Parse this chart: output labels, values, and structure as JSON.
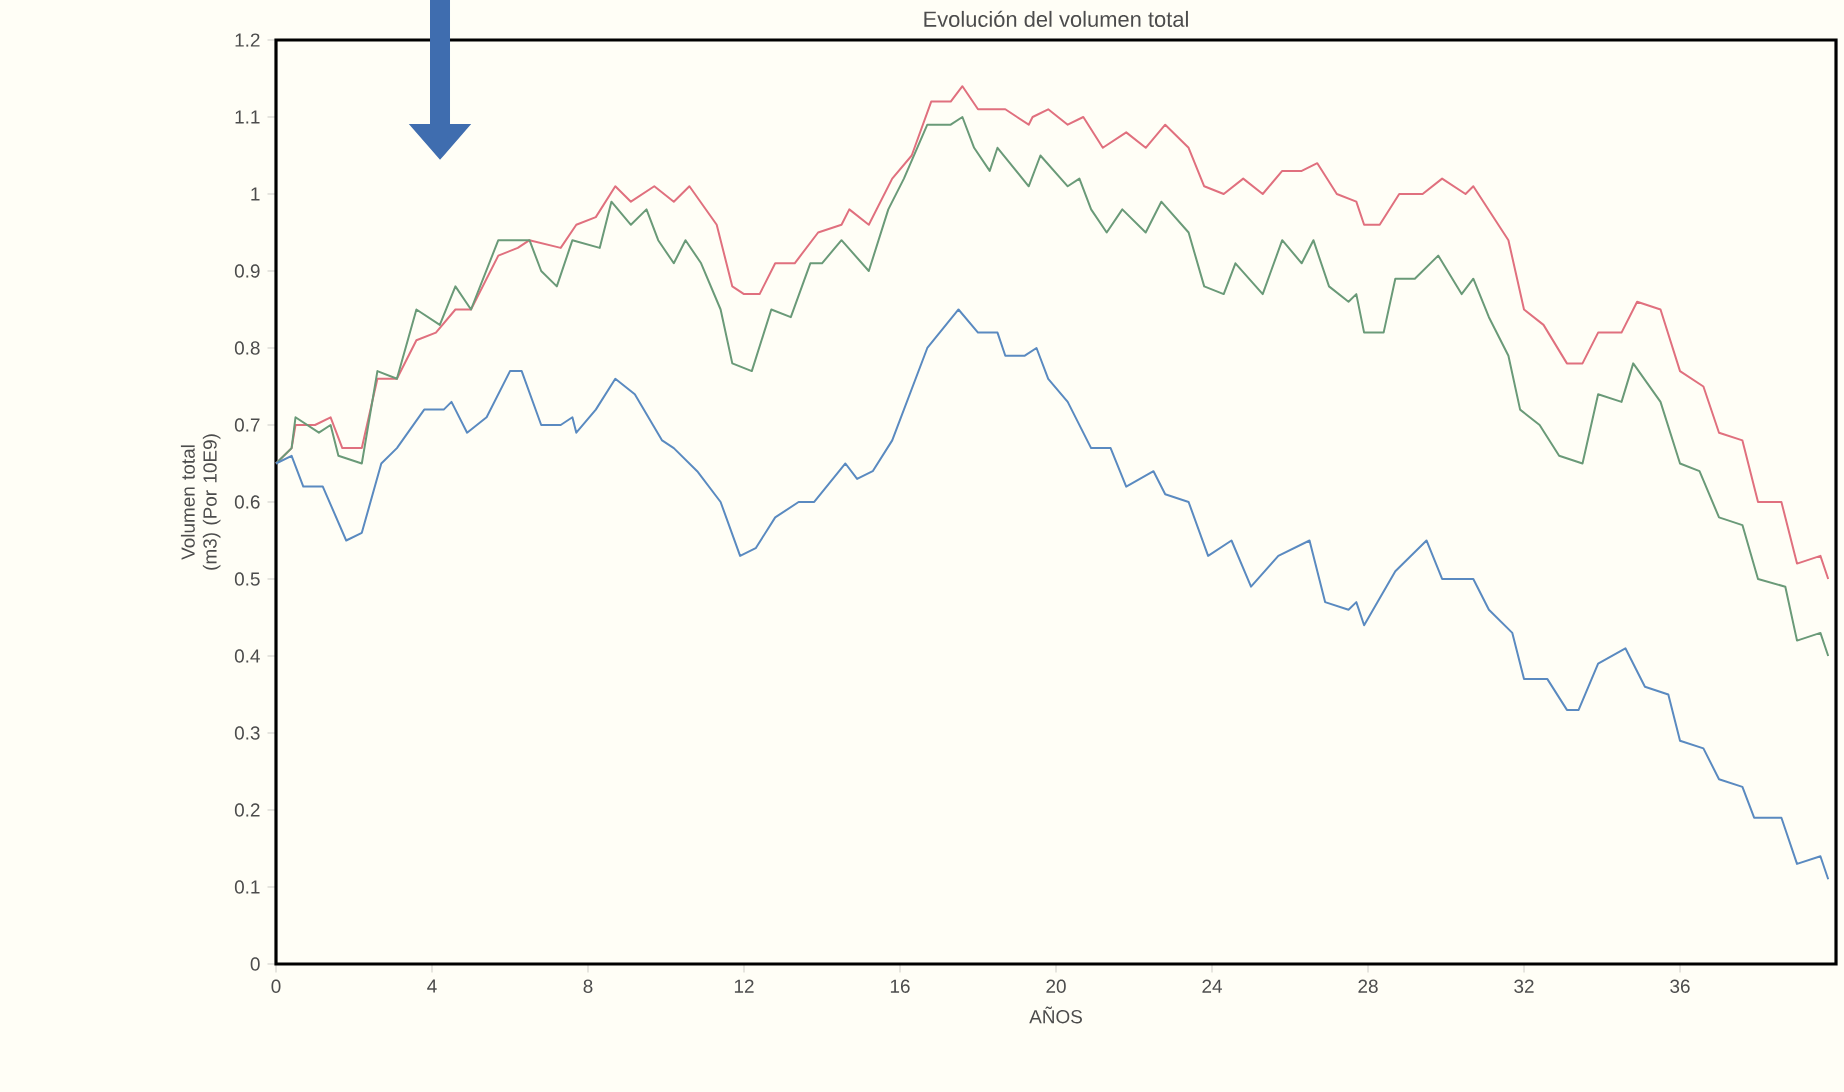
{
  "chart_data": {
    "type": "line",
    "title": "Evolución del volumen total",
    "xlabel": "AÑOS",
    "ylabel": "Volumen total (m3) (Por 10E9)",
    "xlim": [
      0,
      40
    ],
    "xticks": [
      0,
      4,
      8,
      12,
      16,
      20,
      24,
      28,
      32,
      36
    ],
    "ylim": [
      0,
      1.2
    ],
    "yticks": [
      0,
      0.1,
      0.2,
      0.3,
      0.4,
      0.5,
      0.6,
      0.7,
      0.8,
      0.9,
      1,
      1.1,
      1.2
    ],
    "line_style": "solid",
    "marker": "none",
    "series": [
      {
        "color": "#e0707e",
        "x": [
          0,
          0.4,
          0.5,
          1.0,
          1.4,
          1.7,
          2.2,
          2.6,
          3.1,
          3.6,
          4.1,
          4.6,
          5.0,
          5.7,
          6.2,
          6.5,
          7.3,
          7.7,
          8.2,
          8.7,
          9.1,
          9.7,
          10.2,
          10.6,
          11.3,
          11.7,
          12.0,
          12.4,
          12.8,
          13.3,
          13.9,
          14.5,
          14.7,
          15.2,
          15.8,
          16.3,
          16.8,
          17.3,
          17.6,
          18.0,
          18.7,
          19.3,
          19.4,
          19.8,
          20.3,
          20.7,
          21.2,
          21.8,
          22.3,
          22.8,
          23.4,
          23.8,
          24.3,
          24.8,
          25.3,
          25.8,
          26.3,
          26.7,
          27.2,
          27.7,
          27.9,
          28.3,
          28.8,
          29.4,
          29.9,
          30.5,
          30.7,
          31.6,
          32.0,
          32.5,
          33.1,
          33.5,
          33.9,
          34.5,
          34.9,
          35.5,
          36.0,
          36.6,
          37.0,
          37.6,
          38.0,
          38.6,
          39.0,
          39.6,
          39.8
        ],
        "values": [
          0.65,
          0.67,
          0.7,
          0.7,
          0.71,
          0.67,
          0.67,
          0.76,
          0.76,
          0.81,
          0.82,
          0.85,
          0.85,
          0.92,
          0.93,
          0.94,
          0.93,
          0.96,
          0.97,
          1.01,
          0.99,
          1.01,
          0.99,
          1.01,
          0.96,
          0.88,
          0.87,
          0.87,
          0.91,
          0.91,
          0.95,
          0.96,
          0.98,
          0.96,
          1.02,
          1.05,
          1.12,
          1.12,
          1.14,
          1.11,
          1.11,
          1.09,
          1.1,
          1.11,
          1.09,
          1.1,
          1.06,
          1.08,
          1.06,
          1.09,
          1.06,
          1.01,
          1.0,
          1.02,
          1.0,
          1.03,
          1.03,
          1.04,
          1.0,
          0.99,
          0.96,
          0.96,
          1.0,
          1.0,
          1.02,
          1.0,
          1.01,
          0.94,
          0.85,
          0.83,
          0.78,
          0.78,
          0.82,
          0.82,
          0.86,
          0.85,
          0.77,
          0.75,
          0.69,
          0.68,
          0.6,
          0.6,
          0.52,
          0.53,
          0.5
        ]
      },
      {
        "color": "#6a9a78",
        "x": [
          0,
          0.4,
          0.5,
          1.1,
          1.4,
          1.6,
          2.2,
          2.6,
          3.1,
          3.6,
          4.2,
          4.6,
          5.0,
          5.7,
          6.1,
          6.5,
          6.8,
          7.2,
          7.6,
          8.3,
          8.6,
          9.1,
          9.5,
          9.8,
          10.2,
          10.5,
          10.9,
          11.4,
          11.7,
          12.2,
          12.7,
          13.2,
          13.7,
          14.0,
          14.5,
          15.2,
          15.7,
          16.1,
          16.7,
          17.3,
          17.6,
          17.9,
          18.3,
          18.5,
          19.3,
          19.6,
          20.3,
          20.6,
          20.9,
          21.3,
          21.7,
          22.3,
          22.7,
          23.4,
          23.8,
          24.3,
          24.6,
          25.3,
          25.8,
          26.3,
          26.6,
          27.0,
          27.5,
          27.7,
          27.9,
          28.4,
          28.7,
          29.2,
          29.8,
          30.4,
          30.7,
          31.1,
          31.6,
          31.9,
          32.4,
          32.9,
          33.5,
          33.9,
          34.5,
          34.8,
          35.5,
          36.0,
          36.5,
          37.0,
          37.6,
          38.0,
          38.7,
          39.0,
          39.6,
          39.8
        ],
        "values": [
          0.65,
          0.67,
          0.71,
          0.69,
          0.7,
          0.66,
          0.65,
          0.77,
          0.76,
          0.85,
          0.83,
          0.88,
          0.85,
          0.94,
          0.94,
          0.94,
          0.9,
          0.88,
          0.94,
          0.93,
          0.99,
          0.96,
          0.98,
          0.94,
          0.91,
          0.94,
          0.91,
          0.85,
          0.78,
          0.77,
          0.85,
          0.84,
          0.91,
          0.91,
          0.94,
          0.9,
          0.98,
          1.02,
          1.09,
          1.09,
          1.1,
          1.06,
          1.03,
          1.06,
          1.01,
          1.05,
          1.01,
          1.02,
          0.98,
          0.95,
          0.98,
          0.95,
          0.99,
          0.95,
          0.88,
          0.87,
          0.91,
          0.87,
          0.94,
          0.91,
          0.94,
          0.88,
          0.86,
          0.87,
          0.82,
          0.82,
          0.89,
          0.89,
          0.92,
          0.87,
          0.89,
          0.84,
          0.79,
          0.72,
          0.7,
          0.66,
          0.65,
          0.74,
          0.73,
          0.78,
          0.73,
          0.65,
          0.64,
          0.58,
          0.57,
          0.5,
          0.49,
          0.42,
          0.43,
          0.4
        ]
      },
      {
        "color": "#5a8ac0",
        "x": [
          0,
          0.4,
          0.7,
          1.2,
          1.8,
          2.2,
          2.7,
          3.1,
          3.8,
          4.3,
          4.5,
          4.9,
          5.4,
          6.0,
          6.3,
          6.8,
          7.3,
          7.6,
          7.7,
          8.2,
          8.7,
          9.2,
          9.9,
          10.2,
          10.8,
          11.4,
          11.9,
          12.3,
          12.8,
          13.4,
          13.8,
          14.6,
          14.9,
          15.3,
          15.8,
          16.7,
          17.5,
          18.0,
          18.5,
          18.7,
          19.2,
          19.5,
          19.8,
          20.3,
          20.9,
          21.4,
          21.8,
          22.5,
          22.8,
          23.4,
          23.9,
          24.5,
          25.0,
          25.7,
          26.5,
          26.9,
          27.5,
          27.7,
          27.9,
          28.7,
          29.5,
          29.9,
          30.7,
          31.1,
          31.7,
          32.0,
          32.6,
          33.1,
          33.4,
          33.9,
          34.6,
          35.1,
          35.7,
          36.0,
          36.6,
          37.0,
          37.6,
          37.9,
          38.6,
          39.0,
          39.6,
          39.8
        ],
        "values": [
          0.65,
          0.66,
          0.62,
          0.62,
          0.55,
          0.56,
          0.65,
          0.67,
          0.72,
          0.72,
          0.73,
          0.69,
          0.71,
          0.77,
          0.77,
          0.7,
          0.7,
          0.71,
          0.69,
          0.72,
          0.76,
          0.74,
          0.68,
          0.67,
          0.64,
          0.6,
          0.53,
          0.54,
          0.58,
          0.6,
          0.6,
          0.65,
          0.63,
          0.64,
          0.68,
          0.8,
          0.85,
          0.82,
          0.82,
          0.79,
          0.79,
          0.8,
          0.76,
          0.73,
          0.67,
          0.67,
          0.62,
          0.64,
          0.61,
          0.6,
          0.53,
          0.55,
          0.49,
          0.53,
          0.55,
          0.47,
          0.46,
          0.47,
          0.44,
          0.51,
          0.55,
          0.5,
          0.5,
          0.46,
          0.43,
          0.37,
          0.37,
          0.33,
          0.33,
          0.39,
          0.41,
          0.36,
          0.35,
          0.29,
          0.28,
          0.24,
          0.23,
          0.19,
          0.19,
          0.13,
          0.14,
          0.11
        ]
      }
    ]
  }
}
